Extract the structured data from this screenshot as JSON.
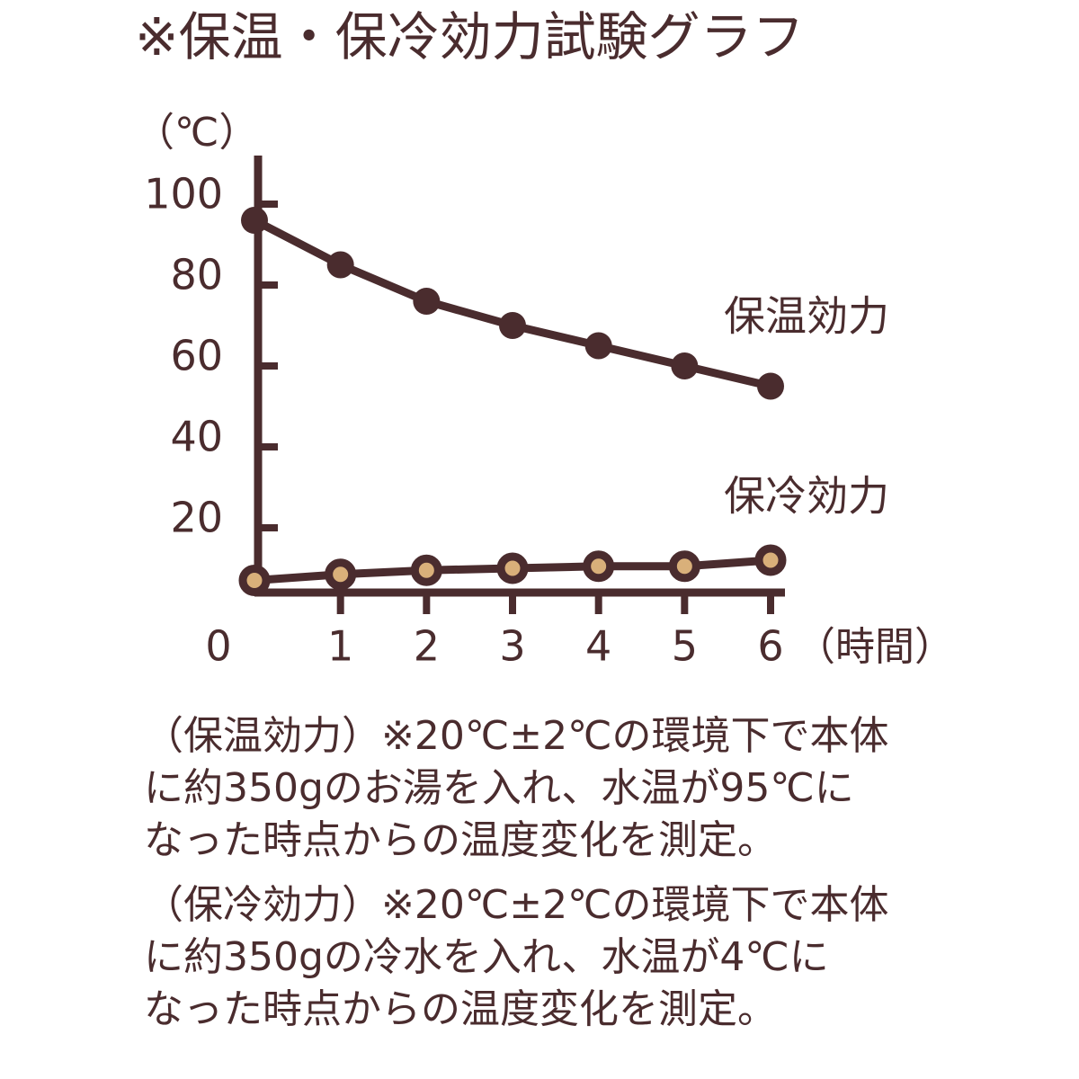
{
  "chart_data": {
    "type": "line",
    "title": "※保温・保冷効力試験グラフ",
    "y_label": "（℃）",
    "x_label": "（時間）",
    "x": [
      0,
      1,
      2,
      3,
      4,
      5,
      6
    ],
    "xlim": [
      0,
      6
    ],
    "xticks": [
      0,
      1,
      2,
      3,
      4,
      5,
      6
    ],
    "ylim": [
      4,
      112
    ],
    "yticks": [
      20,
      40,
      60,
      80,
      100
    ],
    "series": [
      {
        "name": "保温効力",
        "color": "#4a2c2e",
        "values": [
          96,
          85,
          76,
          70,
          65,
          60,
          55
        ]
      },
      {
        "name": "保冷効力",
        "color": "#d9b07a",
        "values": [
          7,
          8.5,
          9.5,
          10,
          10.5,
          10.5,
          12
        ]
      }
    ]
  },
  "notes": [
    [
      "（保温効力）※20℃±2℃の環境下で本体",
      "に約350gのお湯を入れ、水温が95℃に",
      "なった時点からの温度変化を測定。"
    ],
    [
      "（保冷効力）※20℃±2℃の環境下で本体",
      "に約350gの冷水を入れ、水温が4℃に",
      "なった時点からの温度変化を測定。"
    ]
  ]
}
